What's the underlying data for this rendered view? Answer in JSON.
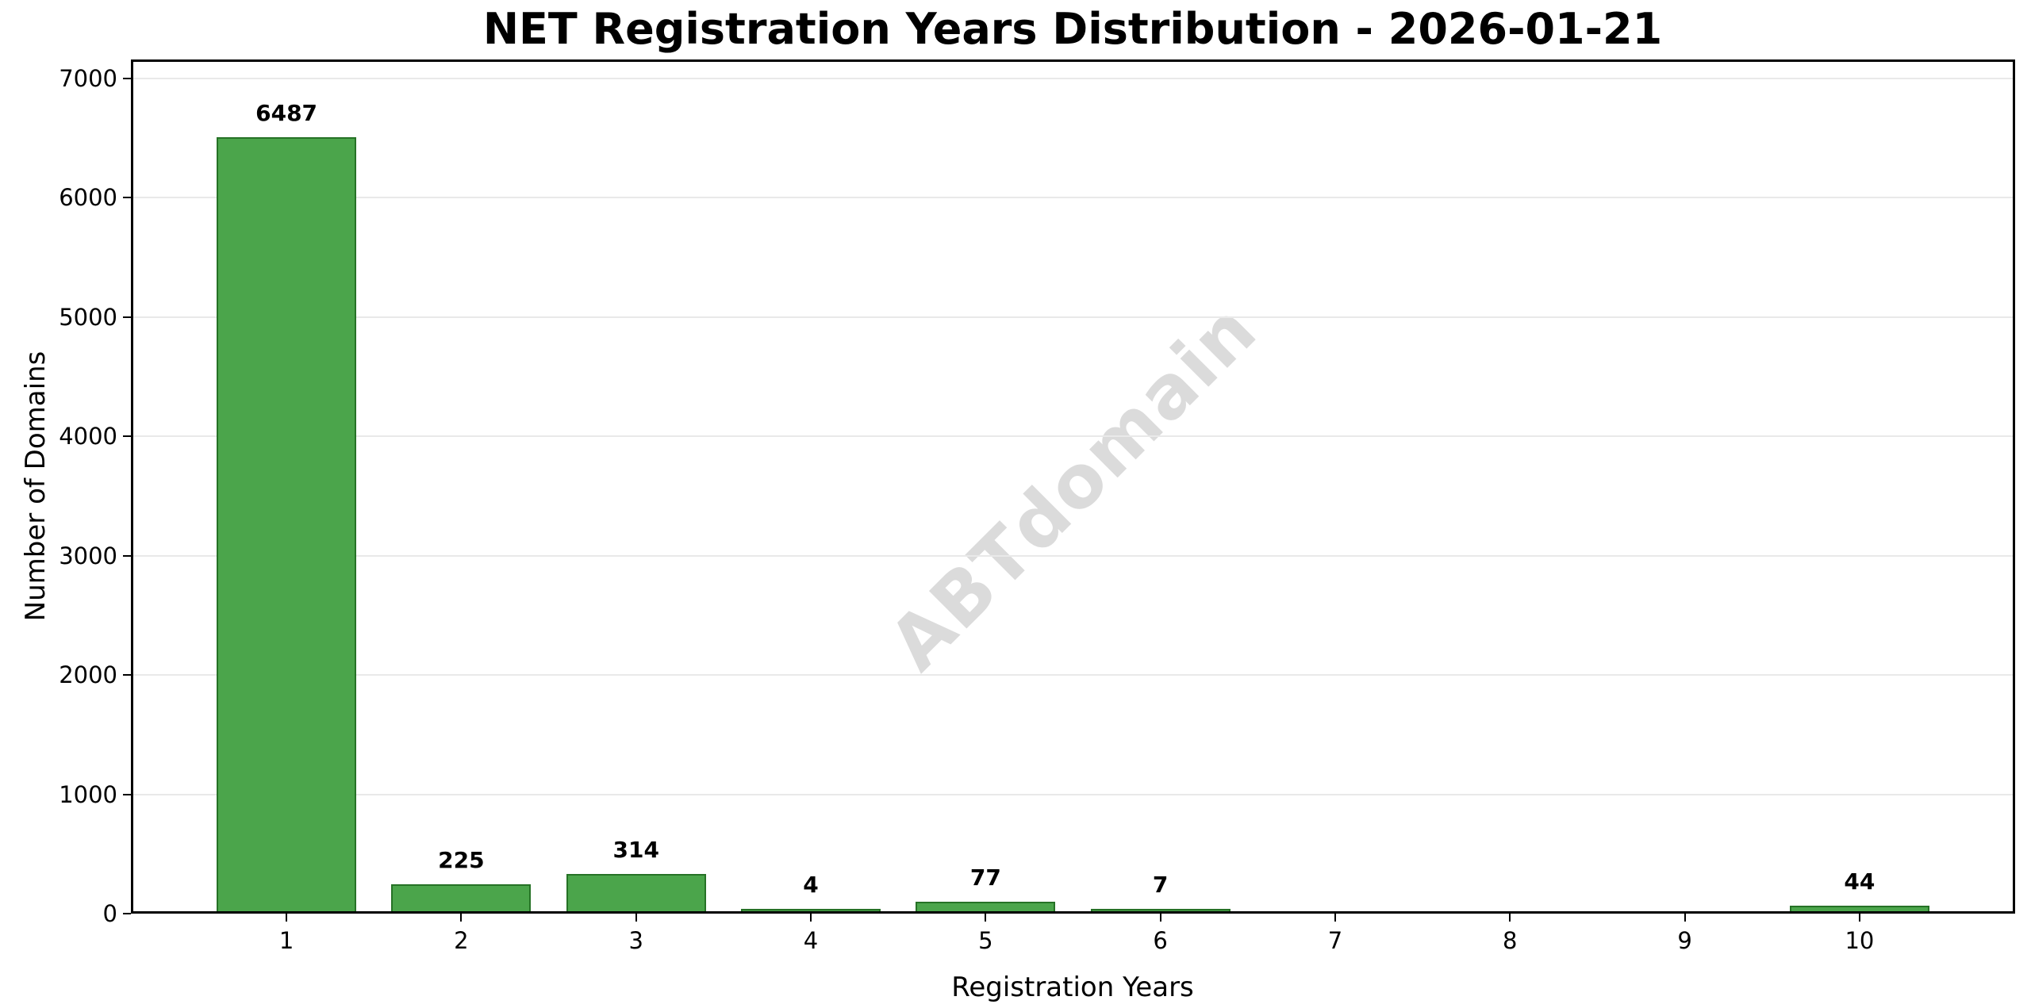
{
  "chart_data": {
    "type": "bar",
    "title": "NET Registration Years Distribution - 2026-01-21",
    "xlabel": "Registration Years",
    "ylabel": "Number of Domains",
    "watermark": "ABTdomain",
    "categories": [
      1,
      2,
      3,
      4,
      5,
      6,
      7,
      8,
      9,
      10
    ],
    "values": [
      6487,
      225,
      314,
      4,
      77,
      7,
      0,
      0,
      0,
      44
    ],
    "bar_labels": [
      "6487",
      "225",
      "314",
      "4",
      "77",
      "7",
      "",
      "",
      "",
      "44"
    ],
    "xticks": [
      1,
      2,
      3,
      4,
      5,
      6,
      7,
      8,
      9,
      10
    ],
    "yticks": [
      0,
      1000,
      2000,
      3000,
      4000,
      5000,
      6000,
      7000
    ],
    "xlim": [
      0.11,
      10.89
    ],
    "ylim": [
      0,
      7160
    ],
    "bar_width": 0.8,
    "grid": "horizontal",
    "legend": "none",
    "colors": {
      "bar_fill": "#4BA54B",
      "bar_edge": "#267226",
      "grid": "#e9e9e9",
      "watermark": "#dbdbdb",
      "text": "#000000",
      "background": "#ffffff"
    }
  }
}
